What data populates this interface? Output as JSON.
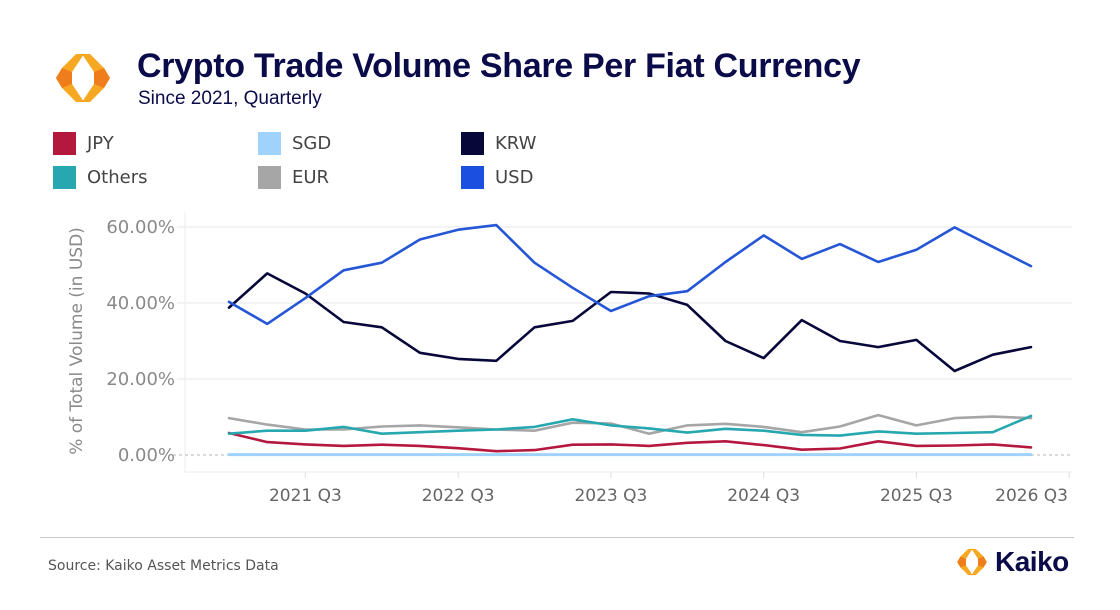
{
  "header": {
    "title": "Crypto Trade Volume Share Per Fiat Currency",
    "subtitle": "Since 2021, Quarterly"
  },
  "legend": [
    {
      "label": "JPY",
      "color": "#b5183f"
    },
    {
      "label": "SGD",
      "color": "#9fd3fb"
    },
    {
      "label": "KRW",
      "color": "#07073a"
    },
    {
      "label": "Others",
      "color": "#27a8b0"
    },
    {
      "label": "EUR",
      "color": "#a6a6a6"
    },
    {
      "label": "USD",
      "color": "#1a4fe0"
    }
  ],
  "footer": {
    "source": "Source: Kaiko Asset Metrics Data",
    "brand": "Kaiko"
  },
  "chart_data": {
    "type": "line",
    "title": "Crypto Trade Volume Share Per Fiat Currency",
    "subtitle": "Since 2021, Quarterly",
    "xlabel": "",
    "ylabel": "% of Total Volume (in USD)",
    "ylim": [
      0,
      60
    ],
    "yticks": [
      0,
      20,
      40,
      60
    ],
    "ytick_labels": [
      "0.00%",
      "20.00%",
      "40.00%",
      "60.00%"
    ],
    "xtick_labels": [
      "2021 Q3",
      "2022 Q3",
      "2023 Q3",
      "2024 Q3",
      "2025 Q3",
      "2026 Q3"
    ],
    "xtick_index": [
      2,
      6,
      10,
      14,
      18,
      22
    ],
    "x": [
      "2021 Q1",
      "2021 Q2",
      "2021 Q3",
      "2021 Q4",
      "2022 Q1",
      "2022 Q2",
      "2022 Q3",
      "2022 Q4",
      "2023 Q1",
      "2023 Q2",
      "2023 Q3",
      "2023 Q4",
      "2024 Q1",
      "2024 Q2",
      "2024 Q3",
      "2024 Q4",
      "2025 Q1",
      "2025 Q2",
      "2025 Q3",
      "2025 Q4",
      "2026 Q1",
      "2026 Q2"
    ],
    "grid": true,
    "legend_position": "top-left",
    "series": [
      {
        "name": "USD",
        "color": "#2456d6",
        "values": [
          40.3,
          34.5,
          41.3,
          48.6,
          50.6,
          56.7,
          59.3,
          60.5,
          50.6,
          44.0,
          37.9,
          41.8,
          43.1,
          50.8,
          57.8,
          51.6,
          55.5,
          50.8,
          54.0,
          59.9,
          54.8,
          49.7
        ]
      },
      {
        "name": "KRW",
        "color": "#07073a",
        "values": [
          38.8,
          47.8,
          42.5,
          35.0,
          33.6,
          26.9,
          25.3,
          24.8,
          33.6,
          35.3,
          42.9,
          42.5,
          39.5,
          30.0,
          25.5,
          35.5,
          30.0,
          28.4,
          30.3,
          22.1,
          26.4,
          28.4
        ]
      },
      {
        "name": "EUR",
        "color": "#a6a6a6",
        "values": [
          9.7,
          8.0,
          6.7,
          6.7,
          7.5,
          7.8,
          7.3,
          6.7,
          6.4,
          8.5,
          8.3,
          5.6,
          7.8,
          8.2,
          7.4,
          6.0,
          7.5,
          10.5,
          7.8,
          9.7,
          10.1,
          9.7
        ]
      },
      {
        "name": "Others",
        "color": "#27a8b0",
        "values": [
          5.6,
          6.4,
          6.4,
          7.4,
          5.6,
          6.0,
          6.4,
          6.7,
          7.4,
          9.4,
          7.8,
          7.0,
          5.9,
          6.9,
          6.4,
          5.3,
          5.1,
          6.2,
          5.6,
          5.8,
          6.0,
          10.3
        ]
      },
      {
        "name": "JPY",
        "color": "#b5183f",
        "values": [
          5.8,
          3.4,
          2.8,
          2.4,
          2.7,
          2.4,
          1.8,
          1.0,
          1.3,
          2.7,
          2.8,
          2.4,
          3.2,
          3.6,
          2.6,
          1.4,
          1.7,
          3.6,
          2.4,
          2.5,
          2.8,
          2.0
        ]
      },
      {
        "name": "SGD",
        "color": "#9fd3fb",
        "values": [
          0.1,
          0.1,
          0.1,
          0.1,
          0.1,
          0.1,
          0.1,
          0.1,
          0.1,
          0.1,
          0.1,
          0.1,
          0.1,
          0.1,
          0.1,
          0.1,
          0.1,
          0.1,
          0.1,
          0.1,
          0.1,
          0.1
        ]
      }
    ]
  }
}
